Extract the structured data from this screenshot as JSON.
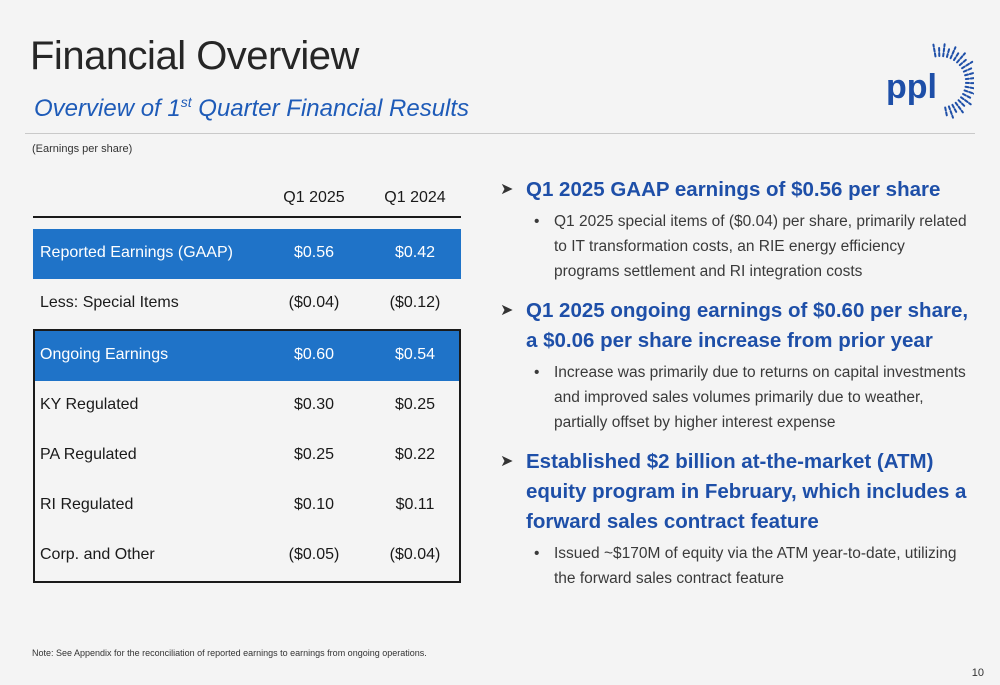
{
  "header": {
    "title": "Financial Overview",
    "subtitle_pre": "Overview of 1",
    "subtitle_sup": "st",
    "subtitle_post": " Quarter Financial Results",
    "eps_label": "(Earnings per share)"
  },
  "logo": {
    "text": "ppl",
    "color": "#1e4fa8"
  },
  "table": {
    "columns": [
      "Q1 2025",
      "Q1 2024"
    ],
    "reported": {
      "label": "Reported Earnings (GAAP)",
      "v1": "$0.56",
      "v2": "$0.42"
    },
    "special": {
      "label": "Less: Special Items",
      "v1": "($0.04)",
      "v2": "($0.12)"
    },
    "ongoing": {
      "label": "Ongoing Earnings",
      "v1": "$0.60",
      "v2": "$0.54"
    },
    "ky": {
      "label": "KY Regulated",
      "v1": "$0.30",
      "v2": "$0.25"
    },
    "pa": {
      "label": "PA Regulated",
      "v1": "$0.25",
      "v2": "$0.22"
    },
    "ri": {
      "label": "RI Regulated",
      "v1": "$0.10",
      "v2": "$0.11"
    },
    "corp": {
      "label": "Corp. and Other",
      "v1": "($0.05)",
      "v2": "($0.04)"
    }
  },
  "bullets": {
    "b1": "Q1 2025 GAAP earnings of $0.56 per share",
    "b1_sub": "Q1 2025 special items of ($0.04) per share, primarily related to IT transformation costs, an RIE energy efficiency programs settlement and RI integration costs",
    "b2": "Q1 2025 ongoing earnings of $0.60 per share, a $0.06 per share increase from prior year",
    "b2_sub": "Increase was primarily due to returns on capital investments and improved sales volumes primarily due to weather, partially offset by higher interest expense",
    "b3": "Established $2 billion at-the-market (ATM) equity program in February, which includes a forward sales contract feature",
    "b3_sub": "Issued ~$170M of equity via the ATM year-to-date, utilizing the forward sales contract feature"
  },
  "footer": {
    "note": "Note: See Appendix for the reconciliation of reported earnings to earnings from ongoing operations.",
    "page": "10"
  },
  "colors": {
    "accent": "#1f73c8",
    "heading_blue": "#1e4fa8"
  }
}
